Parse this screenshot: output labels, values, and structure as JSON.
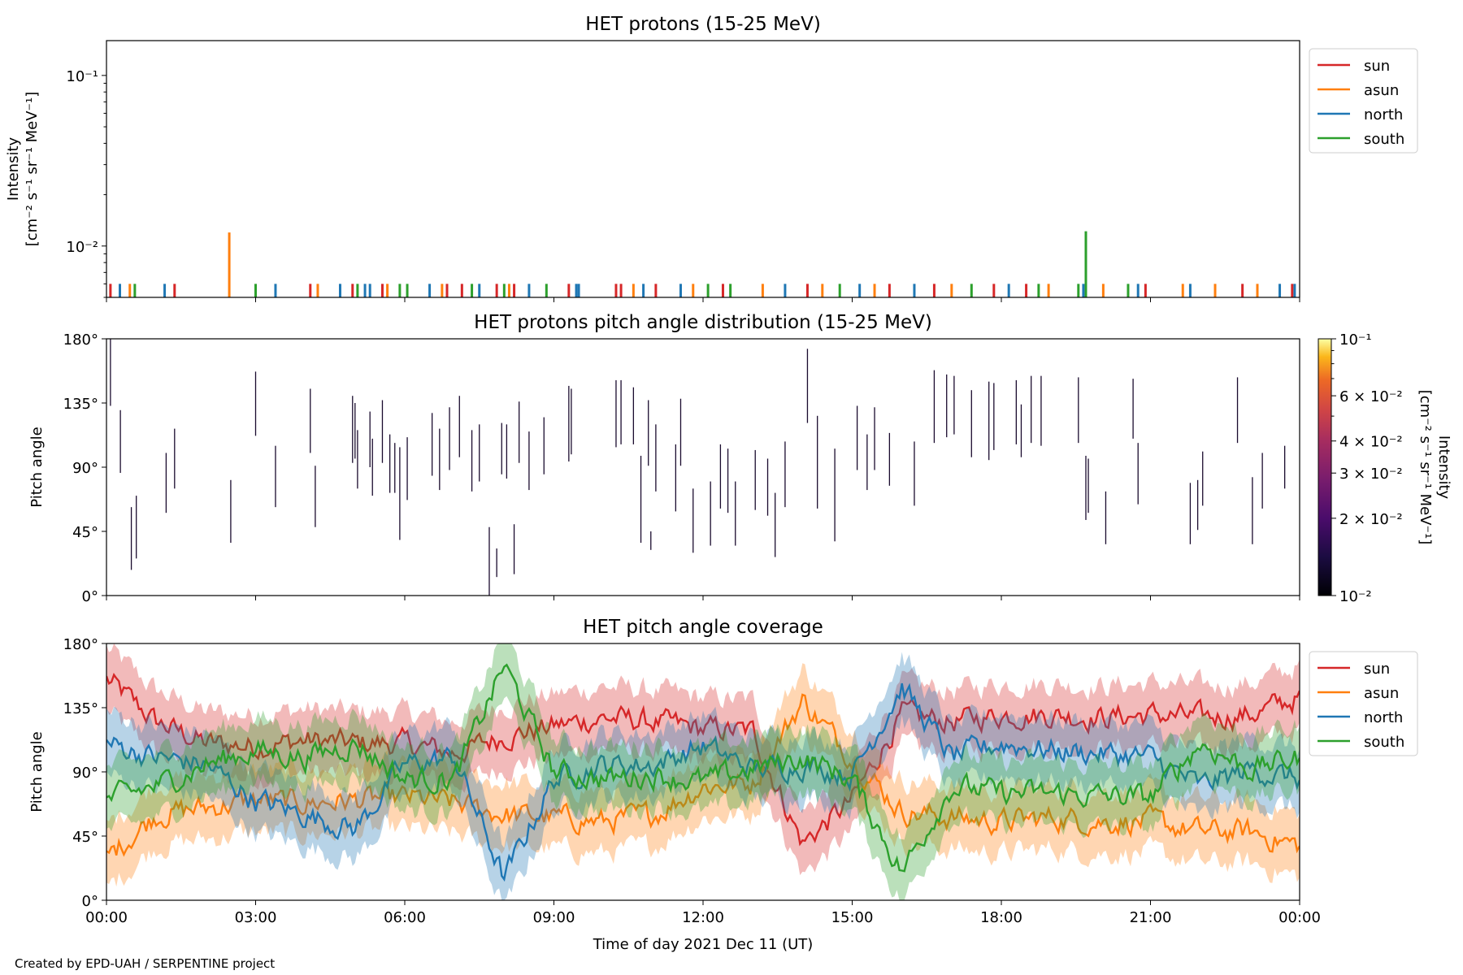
{
  "credit": "Created by EPD-UAH / SERPENTINE project",
  "x_axis": {
    "label": "Time of day 2021 Dec 11 (UT)",
    "ticks": [
      "00:00",
      "03:00",
      "06:00",
      "09:00",
      "12:00",
      "15:00",
      "18:00",
      "21:00",
      "00:00"
    ],
    "range_hours": [
      0,
      24
    ]
  },
  "series_colors": {
    "sun": "#d62728",
    "asun": "#ff7f0e",
    "north": "#1f77b4",
    "south": "#2ca02c"
  },
  "legend_labels": [
    "sun",
    "asun",
    "north",
    "south"
  ],
  "chart_data": [
    {
      "id": "intensity",
      "type": "bar",
      "title": "HET protons (15-25 MeV)",
      "ylabel_line1": "Intensity",
      "ylabel_line2": "[cm⁻² s⁻¹ sr⁻¹ MeV⁻¹]",
      "yscale": "log",
      "ylim": [
        0.005,
        0.16
      ],
      "ytick_labels": [
        "10⁻²",
        "10⁻¹"
      ],
      "ytick_values": [
        0.01,
        0.1
      ],
      "legend_position": "outside-right-top",
      "baseline_value": 0.006,
      "spikes": [
        {
          "series": "sun",
          "t": 0.08,
          "v": 0.006
        },
        {
          "series": "north",
          "t": 0.27,
          "v": 0.006
        },
        {
          "series": "asun",
          "t": 0.47,
          "v": 0.006
        },
        {
          "series": "south",
          "t": 0.57,
          "v": 0.006
        },
        {
          "series": "north",
          "t": 1.17,
          "v": 0.006
        },
        {
          "series": "sun",
          "t": 1.37,
          "v": 0.006
        },
        {
          "series": "asun",
          "t": 2.47,
          "v": 0.012
        },
        {
          "series": "south",
          "t": 3.0,
          "v": 0.006
        },
        {
          "series": "north",
          "t": 3.4,
          "v": 0.006
        },
        {
          "series": "sun",
          "t": 4.1,
          "v": 0.006
        },
        {
          "series": "asun",
          "t": 4.25,
          "v": 0.006
        },
        {
          "series": "north",
          "t": 4.7,
          "v": 0.006
        },
        {
          "series": "sun",
          "t": 4.95,
          "v": 0.006
        },
        {
          "series": "south",
          "t": 5.05,
          "v": 0.006
        },
        {
          "series": "north",
          "t": 5.2,
          "v": 0.006
        },
        {
          "series": "north",
          "t": 5.3,
          "v": 0.006
        },
        {
          "series": "sun",
          "t": 5.55,
          "v": 0.006
        },
        {
          "series": "asun",
          "t": 5.65,
          "v": 0.006
        },
        {
          "series": "south",
          "t": 5.9,
          "v": 0.006
        },
        {
          "series": "south",
          "t": 6.05,
          "v": 0.006
        },
        {
          "series": "north",
          "t": 6.5,
          "v": 0.006
        },
        {
          "series": "asun",
          "t": 6.75,
          "v": 0.006
        },
        {
          "series": "sun",
          "t": 6.85,
          "v": 0.006
        },
        {
          "series": "sun",
          "t": 7.15,
          "v": 0.006
        },
        {
          "series": "south",
          "t": 7.35,
          "v": 0.006
        },
        {
          "series": "north",
          "t": 7.5,
          "v": 0.006
        },
        {
          "series": "sun",
          "t": 7.85,
          "v": 0.006
        },
        {
          "series": "south",
          "t": 8.0,
          "v": 0.006
        },
        {
          "series": "asun",
          "t": 8.1,
          "v": 0.006
        },
        {
          "series": "sun",
          "t": 8.2,
          "v": 0.006
        },
        {
          "series": "north",
          "t": 8.5,
          "v": 0.006
        },
        {
          "series": "south",
          "t": 8.85,
          "v": 0.006
        },
        {
          "series": "sun",
          "t": 9.3,
          "v": 0.006
        },
        {
          "series": "north",
          "t": 9.45,
          "v": 0.006
        },
        {
          "series": "north",
          "t": 9.5,
          "v": 0.006
        },
        {
          "series": "sun",
          "t": 10.25,
          "v": 0.006
        },
        {
          "series": "sun",
          "t": 10.35,
          "v": 0.006
        },
        {
          "series": "asun",
          "t": 10.6,
          "v": 0.006
        },
        {
          "series": "north",
          "t": 10.8,
          "v": 0.006
        },
        {
          "series": "sun",
          "t": 11.05,
          "v": 0.006
        },
        {
          "series": "north",
          "t": 11.55,
          "v": 0.006
        },
        {
          "series": "asun",
          "t": 11.8,
          "v": 0.006
        },
        {
          "series": "south",
          "t": 12.1,
          "v": 0.006
        },
        {
          "series": "sun",
          "t": 12.4,
          "v": 0.006
        },
        {
          "series": "south",
          "t": 12.55,
          "v": 0.006
        },
        {
          "series": "asun",
          "t": 13.2,
          "v": 0.006
        },
        {
          "series": "north",
          "t": 13.65,
          "v": 0.006
        },
        {
          "series": "sun",
          "t": 14.1,
          "v": 0.006
        },
        {
          "series": "asun",
          "t": 14.4,
          "v": 0.006
        },
        {
          "series": "south",
          "t": 14.75,
          "v": 0.006
        },
        {
          "series": "north",
          "t": 15.15,
          "v": 0.006
        },
        {
          "series": "asun",
          "t": 15.45,
          "v": 0.006
        },
        {
          "series": "sun",
          "t": 15.75,
          "v": 0.006
        },
        {
          "series": "north",
          "t": 16.25,
          "v": 0.006
        },
        {
          "series": "sun",
          "t": 16.65,
          "v": 0.006
        },
        {
          "series": "asun",
          "t": 17.0,
          "v": 0.006
        },
        {
          "series": "south",
          "t": 17.4,
          "v": 0.006
        },
        {
          "series": "sun",
          "t": 17.85,
          "v": 0.006
        },
        {
          "series": "north",
          "t": 18.15,
          "v": 0.006
        },
        {
          "series": "sun",
          "t": 18.5,
          "v": 0.006
        },
        {
          "series": "south",
          "t": 18.75,
          "v": 0.006
        },
        {
          "series": "asun",
          "t": 18.95,
          "v": 0.006
        },
        {
          "series": "south",
          "t": 19.55,
          "v": 0.006
        },
        {
          "series": "south",
          "t": 19.7,
          "v": 0.0122
        },
        {
          "series": "north",
          "t": 19.65,
          "v": 0.006
        },
        {
          "series": "asun",
          "t": 20.05,
          "v": 0.006
        },
        {
          "series": "south",
          "t": 20.55,
          "v": 0.006
        },
        {
          "series": "north",
          "t": 20.75,
          "v": 0.006
        },
        {
          "series": "sun",
          "t": 20.9,
          "v": 0.006
        },
        {
          "series": "asun",
          "t": 21.65,
          "v": 0.006
        },
        {
          "series": "north",
          "t": 21.8,
          "v": 0.006
        },
        {
          "series": "asun",
          "t": 22.3,
          "v": 0.006
        },
        {
          "series": "sun",
          "t": 22.85,
          "v": 0.006
        },
        {
          "series": "asun",
          "t": 23.15,
          "v": 0.006
        },
        {
          "series": "north",
          "t": 23.6,
          "v": 0.006
        },
        {
          "series": "sun",
          "t": 23.85,
          "v": 0.006
        },
        {
          "series": "north",
          "t": 23.9,
          "v": 0.006
        }
      ]
    },
    {
      "id": "pad",
      "type": "heatmap",
      "title": "HET protons pitch angle distribution (15-25 MeV)",
      "ylabel": "Pitch angle",
      "ylim": [
        0,
        180
      ],
      "ytick_labels": [
        "0°",
        "45°",
        "90°",
        "135°",
        "180°"
      ],
      "ytick_values": [
        0,
        45,
        90,
        135,
        180
      ],
      "colorbar": {
        "label_line1": "Intensity",
        "label_line2": "[cm⁻² s⁻¹ sr⁻¹ MeV⁻¹]",
        "scale": "log",
        "range": [
          0.01,
          0.1
        ],
        "tick_labels": [
          "10⁻²",
          "2 × 10⁻²",
          "3 × 10⁻²",
          "4 × 10⁻²",
          "6 × 10⁻²",
          "10⁻¹"
        ],
        "tick_values": [
          0.01,
          0.02,
          0.03,
          0.04,
          0.06,
          0.1
        ]
      },
      "segments": [
        [
          0.08,
          180,
          133
        ],
        [
          0.28,
          130,
          86
        ],
        [
          0.5,
          62,
          18
        ],
        [
          0.6,
          70,
          26
        ],
        [
          1.2,
          100,
          58
        ],
        [
          1.37,
          117,
          75
        ],
        [
          2.5,
          81,
          37
        ],
        [
          3.0,
          157,
          112
        ],
        [
          3.4,
          105,
          62
        ],
        [
          4.1,
          145,
          100
        ],
        [
          4.2,
          91,
          48
        ],
        [
          4.95,
          140,
          93
        ],
        [
          5.0,
          135,
          96
        ],
        [
          5.05,
          116,
          75
        ],
        [
          5.3,
          129,
          90
        ],
        [
          5.35,
          110,
          70
        ],
        [
          5.55,
          137,
          93
        ],
        [
          5.7,
          113,
          72
        ],
        [
          5.8,
          107,
          72
        ],
        [
          5.9,
          104,
          39
        ],
        [
          6.05,
          111,
          67
        ],
        [
          6.55,
          128,
          84
        ],
        [
          6.7,
          117,
          74
        ],
        [
          6.9,
          132,
          88
        ],
        [
          7.1,
          140,
          97
        ],
        [
          7.35,
          116,
          73
        ],
        [
          7.5,
          120,
          80
        ],
        [
          7.7,
          48,
          0
        ],
        [
          7.85,
          33,
          13
        ],
        [
          7.95,
          121,
          85
        ],
        [
          8.05,
          120,
          82
        ],
        [
          8.2,
          50,
          15
        ],
        [
          8.3,
          136,
          93
        ],
        [
          8.5,
          115,
          74
        ],
        [
          8.8,
          125,
          85
        ],
        [
          9.3,
          147,
          94
        ],
        [
          9.35,
          145,
          99
        ],
        [
          10.25,
          151,
          104
        ],
        [
          10.35,
          151,
          106
        ],
        [
          10.6,
          146,
          106
        ],
        [
          10.75,
          98,
          37
        ],
        [
          10.9,
          137,
          91
        ],
        [
          10.95,
          45,
          32
        ],
        [
          11.05,
          120,
          73
        ],
        [
          11.45,
          106,
          59
        ],
        [
          11.55,
          138,
          91
        ],
        [
          11.8,
          75,
          30
        ],
        [
          12.15,
          80,
          35
        ],
        [
          12.35,
          106,
          61
        ],
        [
          12.5,
          103,
          58
        ],
        [
          12.65,
          80,
          35
        ],
        [
          13.05,
          102,
          60
        ],
        [
          13.3,
          96,
          56
        ],
        [
          13.45,
          72,
          27
        ],
        [
          13.65,
          108,
          62
        ],
        [
          14.1,
          173,
          121
        ],
        [
          14.3,
          126,
          61
        ],
        [
          14.65,
          103,
          38
        ],
        [
          15.1,
          133,
          88
        ],
        [
          15.3,
          113,
          74
        ],
        [
          15.45,
          132,
          88
        ],
        [
          15.75,
          114,
          77
        ],
        [
          16.25,
          108,
          63
        ],
        [
          16.65,
          158,
          107
        ],
        [
          16.9,
          155,
          111
        ],
        [
          17.05,
          154,
          113
        ],
        [
          17.4,
          144,
          97
        ],
        [
          17.75,
          150,
          95
        ],
        [
          17.85,
          149,
          102
        ],
        [
          18.3,
          151,
          106
        ],
        [
          18.4,
          134,
          97
        ],
        [
          18.6,
          154,
          107
        ],
        [
          18.8,
          154,
          105
        ],
        [
          19.55,
          153,
          107
        ],
        [
          19.7,
          98,
          53
        ],
        [
          19.75,
          96,
          58
        ],
        [
          20.1,
          73,
          36
        ],
        [
          20.65,
          152,
          110
        ],
        [
          20.75,
          107,
          64
        ],
        [
          21.8,
          79,
          36
        ],
        [
          21.95,
          81,
          46
        ],
        [
          22.05,
          101,
          63
        ],
        [
          22.75,
          153,
          107
        ],
        [
          23.05,
          83,
          36
        ],
        [
          23.25,
          100,
          61
        ],
        [
          23.7,
          105,
          75
        ]
      ]
    },
    {
      "id": "coverage",
      "type": "area",
      "title": "HET pitch angle coverage",
      "ylabel": "Pitch angle",
      "ylim": [
        0,
        180
      ],
      "ytick_labels": [
        "0°",
        "45°",
        "90°",
        "135°",
        "180°"
      ],
      "ytick_values": [
        0,
        45,
        90,
        135,
        180
      ],
      "legend_position": "outside-right-top",
      "band_halfwidth_deg": 22,
      "series": [
        {
          "name": "sun",
          "x": [
            0,
            1,
            2,
            3,
            4,
            5,
            6,
            7,
            8,
            9,
            10,
            11,
            12,
            13,
            14,
            15,
            16,
            17,
            18,
            19,
            20,
            21,
            22,
            23,
            24
          ],
          "values": [
            155,
            125,
            110,
            108,
            112,
            110,
            110,
            103,
            115,
            122,
            128,
            125,
            120,
            118,
            40,
            70,
            130,
            125,
            130,
            130,
            128,
            130,
            128,
            130,
            142
          ]
        },
        {
          "name": "asun",
          "x": [
            0,
            1,
            2,
            3,
            4,
            5,
            6,
            7,
            8,
            9,
            10,
            11,
            12,
            13,
            14,
            15,
            16,
            17,
            18,
            19,
            20,
            21,
            22,
            23,
            24
          ],
          "values": [
            30,
            60,
            65,
            70,
            68,
            70,
            72,
            68,
            60,
            58,
            55,
            60,
            80,
            82,
            140,
            100,
            62,
            58,
            55,
            58,
            55,
            55,
            48,
            48,
            38
          ]
        },
        {
          "name": "north",
          "x": [
            0,
            1,
            2,
            3,
            4,
            5,
            6,
            7,
            8,
            9,
            10,
            11,
            12,
            13,
            14,
            15,
            16,
            17,
            18,
            19,
            20,
            21,
            22,
            23,
            24
          ],
          "values": [
            110,
            100,
            95,
            70,
            60,
            50,
            95,
            100,
            15,
            85,
            95,
            95,
            108,
            92,
            95,
            88,
            150,
            100,
            110,
            105,
            103,
            100,
            80,
            92,
            85
          ]
        },
        {
          "name": "south",
          "x": [
            0,
            1,
            2,
            3,
            4,
            5,
            6,
            7,
            8,
            9,
            10,
            11,
            12,
            13,
            14,
            15,
            16,
            17,
            18,
            19,
            20,
            21,
            22,
            23,
            24
          ],
          "values": [
            70,
            80,
            95,
            105,
            100,
            110,
            85,
            85,
            165,
            90,
            85,
            88,
            83,
            92,
            100,
            85,
            20,
            80,
            75,
            75,
            73,
            72,
            110,
            92,
            100
          ]
        }
      ]
    }
  ]
}
